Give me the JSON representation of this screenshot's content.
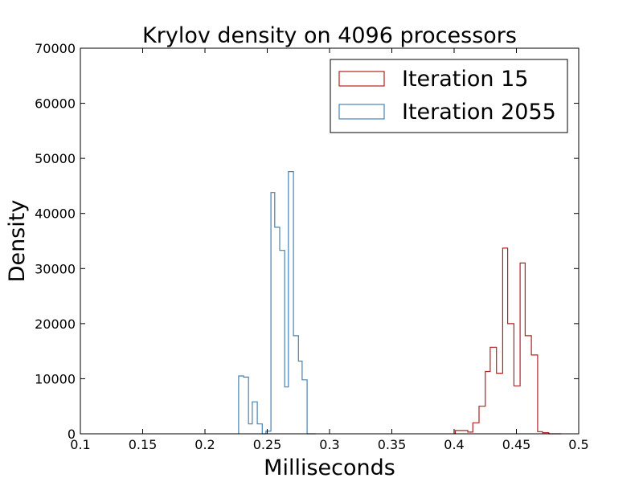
{
  "chart_data": {
    "type": "histogram",
    "title": "Krylov density on 4096 processors",
    "xlabel": "Milliseconds",
    "ylabel": "Density",
    "xlim": [
      0.1,
      0.5
    ],
    "ylim": [
      0,
      70000
    ],
    "xticks": [
      "0.1",
      "0.15",
      "0.2",
      "0.25",
      "0.3",
      "0.35",
      "0.4",
      "0.45",
      "0.5"
    ],
    "yticks": [
      "0",
      "10000",
      "20000",
      "30000",
      "40000",
      "50000",
      "60000",
      "70000"
    ],
    "grid": false,
    "legend_position": "top-right",
    "series": [
      {
        "name": "Iteration 15",
        "color": "#b22222",
        "bin_edges": [
          0.401,
          0.406,
          0.411,
          0.415,
          0.42,
          0.425,
          0.429,
          0.434,
          0.439,
          0.443,
          0.448,
          0.453,
          0.457,
          0.462,
          0.467,
          0.471,
          0.476,
          0.481,
          0.486
        ],
        "values": [
          600,
          600,
          300,
          2000,
          5000,
          11300,
          15700,
          11000,
          33700,
          20000,
          8700,
          31000,
          17800,
          14300,
          400,
          200,
          0,
          0
        ]
      },
      {
        "name": "Iteration 2055",
        "color": "#4682b4",
        "bin_edges": [
          0.227,
          0.231,
          0.235,
          0.238,
          0.242,
          0.246,
          0.249,
          0.253,
          0.256,
          0.26,
          0.264,
          0.267,
          0.271,
          0.275,
          0.278,
          0.282,
          0.286,
          0.289
        ],
        "values": [
          10500,
          10300,
          1800,
          5800,
          1800,
          0,
          500,
          43800,
          37500,
          33300,
          8500,
          47600,
          17800,
          13200,
          9800,
          0,
          0
        ]
      }
    ]
  }
}
